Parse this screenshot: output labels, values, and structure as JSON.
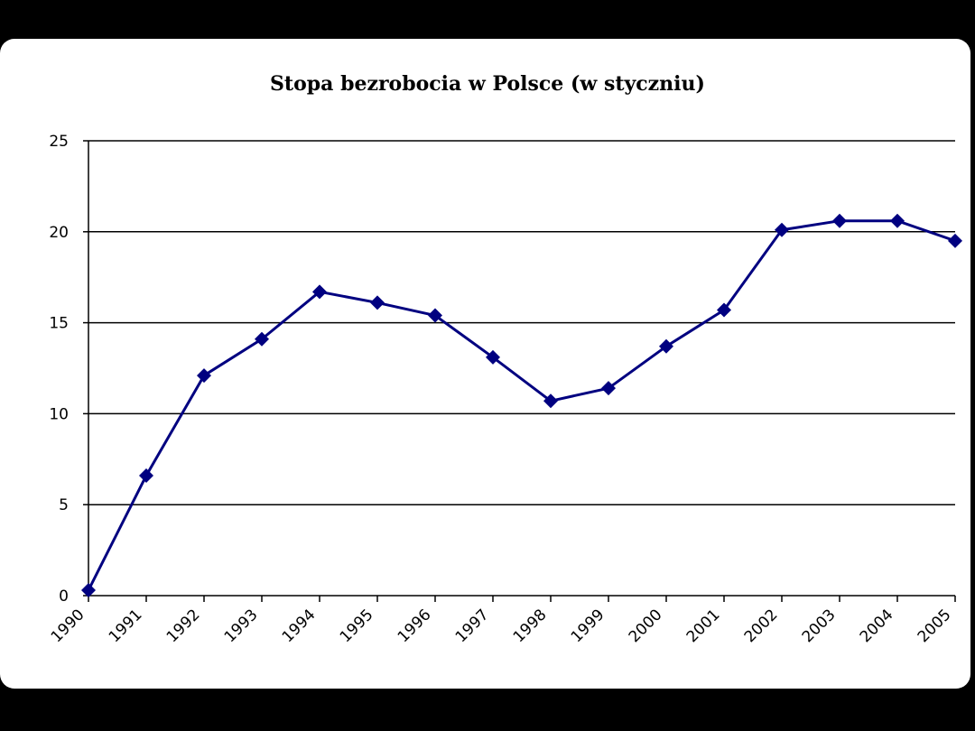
{
  "chart_data": {
    "type": "line",
    "title": "Stopa bezrobocia w Polsce (w styczniu)",
    "xlabel": "",
    "ylabel": "",
    "categories": [
      "1990",
      "1991",
      "1992",
      "1993",
      "1994",
      "1995",
      "1996",
      "1997",
      "1998",
      "1999",
      "2000",
      "2001",
      "2002",
      "2003",
      "2004",
      "2005"
    ],
    "series": [
      {
        "name": "",
        "values": [
          0.3,
          6.6,
          12.1,
          14.1,
          16.7,
          16.1,
          15.4,
          13.1,
          10.7,
          11.4,
          13.7,
          15.7,
          20.1,
          20.6,
          20.6,
          19.5
        ],
        "color": "#000080"
      }
    ],
    "ylim": [
      0,
      25
    ],
    "yticks": [
      "0",
      "5",
      "10",
      "15",
      "20",
      "25"
    ],
    "ytick_values": [
      0,
      5,
      10,
      15,
      20,
      25
    ],
    "grid": true,
    "marker": "diamond",
    "legend": "none"
  }
}
